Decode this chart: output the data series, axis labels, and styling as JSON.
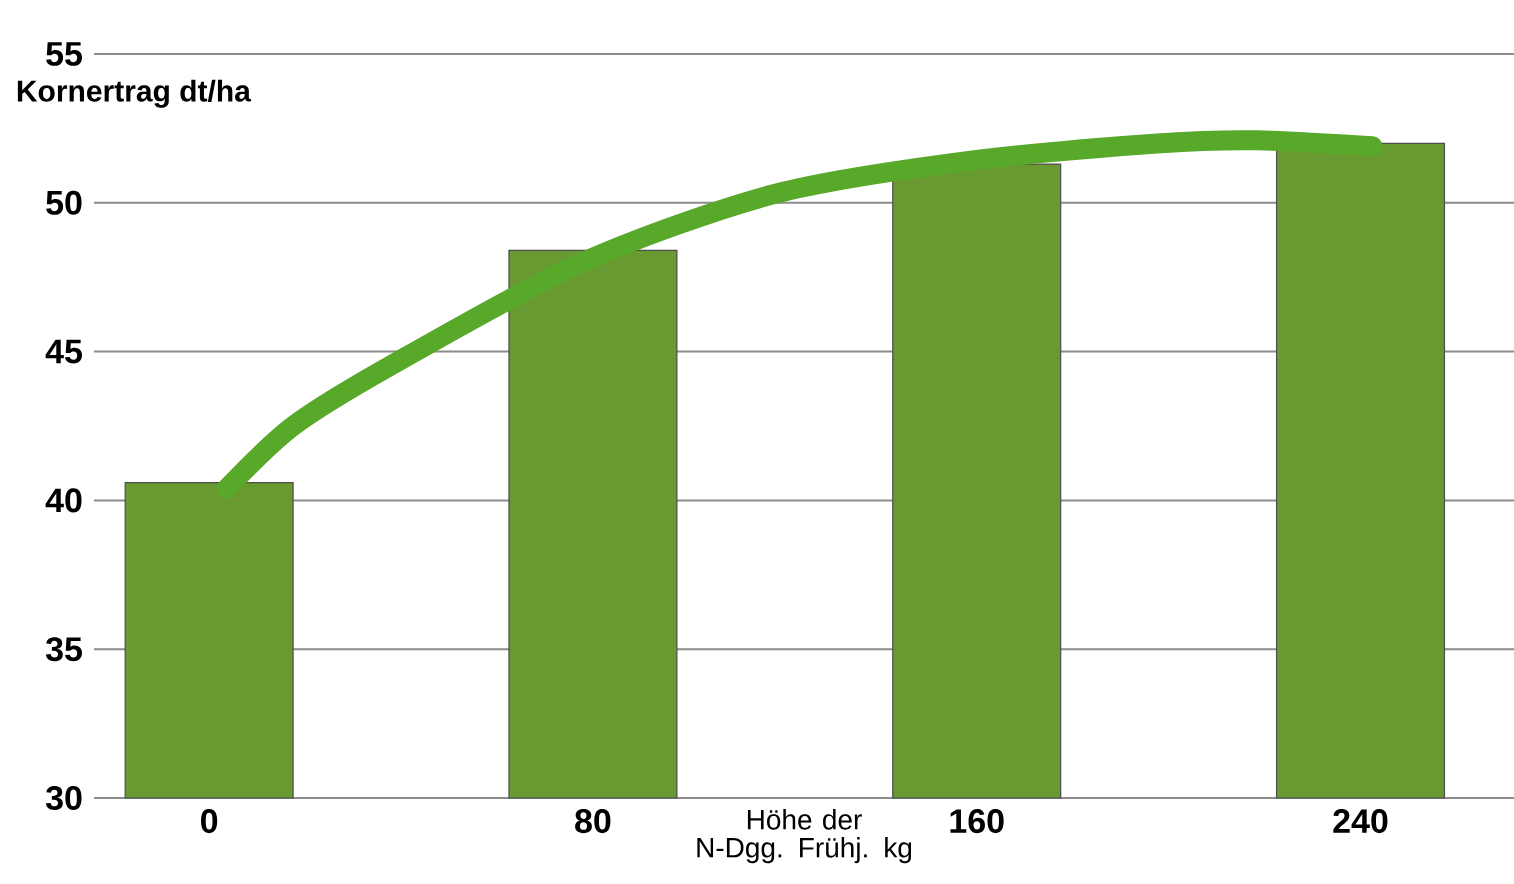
{
  "chart_data": {
    "type": "bar",
    "xlabel": "Höhe der N-Dgg. Frühj. kg",
    "ylabel": "Kornertrag dt/ha",
    "x": [
      0,
      80,
      160,
      240
    ],
    "series": [
      {
        "color": "#699a31",
        "values": [
          40.6,
          48.4,
          51.3,
          52.0
        ]
      },
      {
        "type": "line",
        "color": "#58a82a",
        "x": [
          3.7,
          17.5,
          37.5,
          77.8,
          117.9,
          158,
          198.4,
          218.4,
          242.5
        ],
        "values": [
          40.4,
          42.5,
          44.5,
          48.0,
          50.3,
          51.4,
          52.0,
          52.1,
          51.9
        ]
      }
    ],
    "xlim": [
      -24,
      272
    ],
    "ylim": [
      30,
      55
    ],
    "xticks": [
      0,
      80,
      160,
      240
    ],
    "yticks": [
      30,
      35,
      40,
      45,
      50,
      55
    ],
    "grid": "y"
  }
}
